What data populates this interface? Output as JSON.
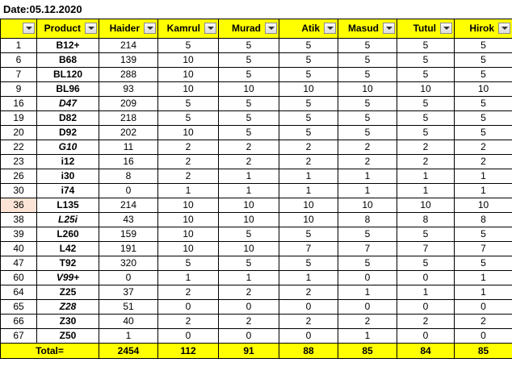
{
  "sheet": {
    "date_label": "Date:05.12.2020",
    "headers": [
      "",
      "Product",
      "Haider",
      "Kamrul",
      "Murad",
      "Atik",
      "Masud",
      "Tutul",
      "Hirok"
    ],
    "rows": [
      {
        "no": "1",
        "product": "B12+",
        "italic": false,
        "vals": [
          "214",
          "5",
          "5",
          "5",
          "5",
          "5",
          "5"
        ]
      },
      {
        "no": "6",
        "product": "B68",
        "italic": false,
        "vals": [
          "139",
          "10",
          "5",
          "5",
          "5",
          "5",
          "5"
        ]
      },
      {
        "no": "7",
        "product": "BL120",
        "italic": false,
        "vals": [
          "288",
          "10",
          "5",
          "5",
          "5",
          "5",
          "5"
        ]
      },
      {
        "no": "9",
        "product": "BL96",
        "italic": false,
        "vals": [
          "93",
          "10",
          "10",
          "10",
          "10",
          "10",
          "10"
        ]
      },
      {
        "no": "16",
        "product": "D47",
        "italic": true,
        "vals": [
          "209",
          "5",
          "5",
          "5",
          "5",
          "5",
          "5"
        ]
      },
      {
        "no": "19",
        "product": "D82",
        "italic": false,
        "vals": [
          "218",
          "5",
          "5",
          "5",
          "5",
          "5",
          "5"
        ]
      },
      {
        "no": "20",
        "product": "D92",
        "italic": false,
        "vals": [
          "202",
          "10",
          "5",
          "5",
          "5",
          "5",
          "5"
        ]
      },
      {
        "no": "22",
        "product": "G10",
        "italic": true,
        "vals": [
          "11",
          "2",
          "2",
          "2",
          "2",
          "2",
          "2"
        ]
      },
      {
        "no": "23",
        "product": "i12",
        "italic": false,
        "vals": [
          "16",
          "2",
          "2",
          "2",
          "2",
          "2",
          "2"
        ]
      },
      {
        "no": "26",
        "product": "i30",
        "italic": false,
        "vals": [
          "8",
          "2",
          "1",
          "1",
          "1",
          "1",
          "1"
        ]
      },
      {
        "no": "30",
        "product": "i74",
        "italic": false,
        "vals": [
          "0",
          "1",
          "1",
          "1",
          "1",
          "1",
          "1"
        ]
      },
      {
        "no": "36",
        "product": "L135",
        "italic": false,
        "vals": [
          "214",
          "10",
          "10",
          "10",
          "10",
          "10",
          "10"
        ]
      },
      {
        "no": "38",
        "product": "L25i",
        "italic": true,
        "vals": [
          "43",
          "10",
          "10",
          "10",
          "8",
          "8",
          "8"
        ]
      },
      {
        "no": "39",
        "product": "L260",
        "italic": false,
        "vals": [
          "159",
          "10",
          "5",
          "5",
          "5",
          "5",
          "5"
        ]
      },
      {
        "no": "40",
        "product": "L42",
        "italic": false,
        "vals": [
          "191",
          "10",
          "10",
          "7",
          "7",
          "7",
          "7"
        ]
      },
      {
        "no": "47",
        "product": "T92",
        "italic": false,
        "vals": [
          "320",
          "5",
          "5",
          "5",
          "5",
          "5",
          "5"
        ]
      },
      {
        "no": "60",
        "product": "V99+",
        "italic": true,
        "vals": [
          "0",
          "1",
          "1",
          "1",
          "0",
          "0",
          "1"
        ]
      },
      {
        "no": "64",
        "product": "Z25",
        "italic": false,
        "vals": [
          "37",
          "2",
          "2",
          "2",
          "1",
          "1",
          "1"
        ]
      },
      {
        "no": "65",
        "product": "Z28",
        "italic": true,
        "vals": [
          "51",
          "0",
          "0",
          "0",
          "0",
          "0",
          "0"
        ]
      },
      {
        "no": "66",
        "product": "Z30",
        "italic": false,
        "vals": [
          "40",
          "2",
          "2",
          "2",
          "2",
          "2",
          "2"
        ]
      },
      {
        "no": "67",
        "product": "Z50",
        "italic": false,
        "vals": [
          "1",
          "0",
          "0",
          "0",
          "1",
          "0",
          "0"
        ]
      }
    ],
    "total": {
      "label": "Total=",
      "vals": [
        "2454",
        "112",
        "91",
        "88",
        "85",
        "84",
        "85"
      ]
    },
    "colors": {
      "header_bg": "#ffff00",
      "total_bg": "#ffff00",
      "row_highlight": "#fbe4d5"
    }
  }
}
